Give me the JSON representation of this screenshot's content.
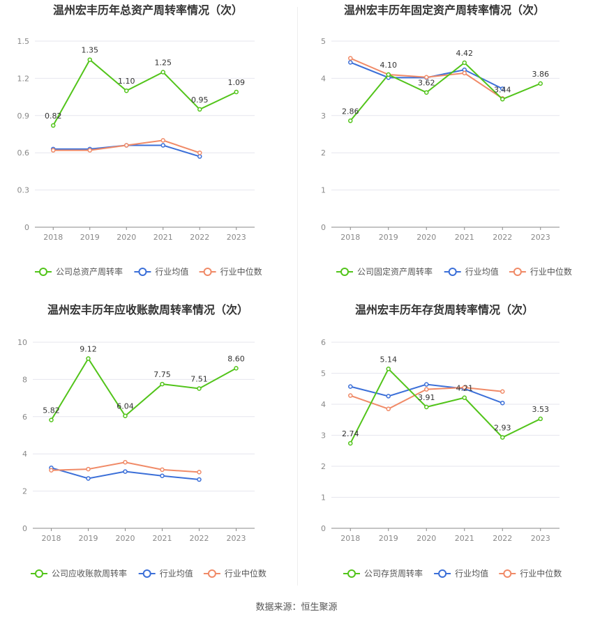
{
  "source": "数据来源：恒生聚源",
  "chart_data": [
    {
      "type": "line",
      "title": "温州宏丰历年总资产周转率情况（次）",
      "categories": [
        "2018",
        "2019",
        "2020",
        "2021",
        "2022",
        "2023"
      ],
      "ylim": [
        0,
        1.5
      ],
      "yticks": [
        "0",
        "0.3",
        "0.6",
        "0.9",
        "1.2",
        "1.5"
      ],
      "grid": true,
      "legend_position": "bottom",
      "series": [
        {
          "name": "公司总资产周转率",
          "color": "#52c41a",
          "values": [
            0.82,
            1.35,
            1.1,
            1.25,
            0.95,
            1.09
          ],
          "labels": [
            "0.82",
            "1.35",
            "1.10",
            "1.25",
            "0.95",
            "1.09"
          ]
        },
        {
          "name": "行业均值",
          "color": "#3b6fd8",
          "values": [
            0.63,
            0.63,
            0.66,
            0.66,
            0.57,
            null
          ]
        },
        {
          "name": "行业中位数",
          "color": "#f08a67",
          "values": [
            0.62,
            0.62,
            0.66,
            0.7,
            0.6,
            null
          ]
        }
      ]
    },
    {
      "type": "line",
      "title": "温州宏丰历年固定资产周转率情况（次）",
      "categories": [
        "2018",
        "2019",
        "2020",
        "2021",
        "2022",
        "2023"
      ],
      "ylim": [
        0,
        5
      ],
      "yticks": [
        "0",
        "1",
        "2",
        "3",
        "4",
        "5"
      ],
      "grid": true,
      "legend_position": "bottom",
      "series": [
        {
          "name": "公司固定资产周转率",
          "color": "#52c41a",
          "values": [
            2.86,
            4.1,
            3.62,
            4.42,
            3.44,
            3.86
          ],
          "labels": [
            "2.86",
            "4.10",
            "3.62",
            "4.42",
            "3.44",
            "3.86"
          ]
        },
        {
          "name": "行业均值",
          "color": "#3b6fd8",
          "values": [
            4.43,
            4.02,
            4.02,
            4.23,
            3.72,
            null
          ]
        },
        {
          "name": "行业中位数",
          "color": "#f08a67",
          "values": [
            4.54,
            4.1,
            4.03,
            4.14,
            3.46,
            null
          ]
        }
      ]
    },
    {
      "type": "line",
      "title": "温州宏丰历年应收账款周转率情况（次）",
      "categories": [
        "2018",
        "2019",
        "2020",
        "2021",
        "2022",
        "2023"
      ],
      "ylim": [
        0,
        10
      ],
      "yticks": [
        "0",
        "2",
        "4",
        "6",
        "8",
        "10"
      ],
      "grid": true,
      "legend_position": "bottom",
      "series": [
        {
          "name": "公司应收账款周转率",
          "color": "#52c41a",
          "values": [
            5.82,
            9.12,
            6.04,
            7.75,
            7.51,
            8.6
          ],
          "labels": [
            "5.82",
            "9.12",
            "6.04",
            "7.75",
            "7.51",
            "8.60"
          ]
        },
        {
          "name": "行业均值",
          "color": "#3b6fd8",
          "values": [
            3.25,
            2.68,
            3.05,
            2.82,
            2.62,
            null
          ]
        },
        {
          "name": "行业中位数",
          "color": "#f08a67",
          "values": [
            3.12,
            3.18,
            3.55,
            3.15,
            3.02,
            null
          ]
        }
      ]
    },
    {
      "type": "line",
      "title": "温州宏丰历年存货周转率情况（次）",
      "categories": [
        "2018",
        "2019",
        "2020",
        "2021",
        "2022",
        "2023"
      ],
      "ylim": [
        0,
        6
      ],
      "yticks": [
        "0",
        "1",
        "2",
        "3",
        "4",
        "5",
        "6"
      ],
      "grid": true,
      "legend_position": "bottom",
      "series": [
        {
          "name": "公司存货周转率",
          "color": "#52c41a",
          "values": [
            2.74,
            5.14,
            3.91,
            4.21,
            2.93,
            3.53
          ],
          "labels": [
            "2.74",
            "5.14",
            "3.91",
            "4.21",
            "2.93",
            "3.53"
          ]
        },
        {
          "name": "行业均值",
          "color": "#3b6fd8",
          "values": [
            4.57,
            4.26,
            4.64,
            4.5,
            4.04,
            null
          ]
        },
        {
          "name": "行业中位数",
          "color": "#f08a67",
          "values": [
            4.28,
            3.85,
            4.48,
            4.54,
            4.41,
            null
          ]
        }
      ]
    }
  ]
}
